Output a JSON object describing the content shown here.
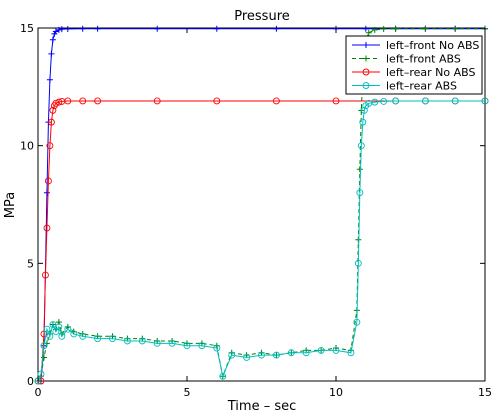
{
  "chart_data": {
    "type": "line",
    "title": "Pressure",
    "xlabel": "Time – sec",
    "ylabel": "MPa",
    "xlim": [
      0,
      15
    ],
    "ylim": [
      0,
      15
    ],
    "xticks": [
      "0",
      "5",
      "10",
      "15"
    ],
    "yticks": [
      "0",
      "5",
      "10",
      "15"
    ],
    "grid": false,
    "legend_position": "top-right",
    "series": [
      {
        "name": "left–front No ABS",
        "color": "#0000ff",
        "linestyle": "solid",
        "marker": "plus",
        "x": [
          0,
          0.1,
          0.2,
          0.3,
          0.35,
          0.4,
          0.45,
          0.5,
          0.55,
          0.6,
          0.7,
          0.8,
          1.0,
          1.5,
          2,
          4,
          6,
          8,
          10,
          11,
          12,
          13,
          14,
          15
        ],
        "y": [
          0,
          0,
          1.5,
          8.0,
          11.0,
          12.8,
          13.9,
          14.5,
          14.75,
          14.85,
          14.92,
          14.95,
          14.96,
          14.97,
          14.97,
          14.97,
          14.97,
          14.97,
          14.97,
          14.97,
          14.97,
          14.97,
          14.97,
          14.97
        ]
      },
      {
        "name": "left–front ABS",
        "color": "#008000",
        "linestyle": "dashed",
        "marker": "plus",
        "x": [
          0,
          0.1,
          0.2,
          0.3,
          0.4,
          0.5,
          0.6,
          0.7,
          0.8,
          1.0,
          1.2,
          1.5,
          2.0,
          2.5,
          3.0,
          3.5,
          4.0,
          4.5,
          5.0,
          5.5,
          6.0,
          6.2,
          6.5,
          7.0,
          7.5,
          8.0,
          8.5,
          9.0,
          9.5,
          10.0,
          10.5,
          10.7,
          10.75,
          10.8,
          10.85,
          10.9,
          10.95,
          11.0,
          11.1,
          11.3,
          11.6,
          12,
          13,
          14,
          15
        ],
        "y": [
          0,
          0.2,
          1.0,
          1.6,
          2.0,
          2.4,
          2.2,
          2.5,
          2.0,
          2.3,
          2.1,
          2.0,
          1.9,
          1.9,
          1.8,
          1.8,
          1.7,
          1.7,
          1.6,
          1.6,
          1.5,
          0.2,
          1.2,
          1.1,
          1.2,
          1.1,
          1.2,
          1.3,
          1.3,
          1.4,
          1.3,
          3.0,
          6.0,
          9.0,
          11.5,
          13.0,
          14.0,
          14.5,
          14.8,
          14.92,
          14.96,
          14.97,
          14.97,
          14.97,
          14.97
        ]
      },
      {
        "name": "left–rear No ABS",
        "color": "#ff0000",
        "linestyle": "solid",
        "marker": "circle",
        "x": [
          0,
          0.1,
          0.2,
          0.25,
          0.3,
          0.35,
          0.4,
          0.45,
          0.5,
          0.55,
          0.6,
          0.7,
          0.8,
          1.0,
          1.5,
          2,
          4,
          6,
          8,
          10,
          12,
          13,
          14,
          15
        ],
        "y": [
          0,
          0,
          2.0,
          4.5,
          6.5,
          8.5,
          10.0,
          11.0,
          11.5,
          11.7,
          11.8,
          11.85,
          11.88,
          11.9,
          11.9,
          11.9,
          11.9,
          11.9,
          11.9,
          11.9,
          11.9,
          11.9,
          11.9,
          11.9
        ]
      },
      {
        "name": "left–rear ABS",
        "color": "#00bfbf",
        "linestyle": "solid",
        "marker": "circle",
        "x": [
          0,
          0.1,
          0.2,
          0.3,
          0.4,
          0.5,
          0.6,
          0.7,
          0.8,
          1.0,
          1.2,
          1.5,
          2.0,
          2.5,
          3.0,
          3.5,
          4.0,
          4.5,
          5.0,
          5.5,
          6.0,
          6.2,
          6.5,
          7.0,
          7.5,
          8.0,
          8.5,
          9.0,
          9.5,
          10.0,
          10.5,
          10.7,
          10.75,
          10.8,
          10.85,
          10.9,
          10.95,
          11.0,
          11.1,
          11.3,
          11.6,
          12,
          13,
          14,
          15
        ],
        "y": [
          0,
          0.3,
          1.5,
          2.2,
          1.9,
          2.4,
          2.1,
          2.3,
          1.9,
          2.2,
          2.0,
          1.9,
          1.8,
          1.8,
          1.7,
          1.7,
          1.6,
          1.6,
          1.5,
          1.5,
          1.4,
          0.2,
          1.1,
          1.0,
          1.1,
          1.1,
          1.2,
          1.2,
          1.3,
          1.3,
          1.2,
          2.5,
          5.0,
          8.0,
          10.0,
          11.0,
          11.5,
          11.7,
          11.8,
          11.85,
          11.88,
          11.9,
          11.9,
          11.9,
          11.9
        ]
      }
    ]
  }
}
